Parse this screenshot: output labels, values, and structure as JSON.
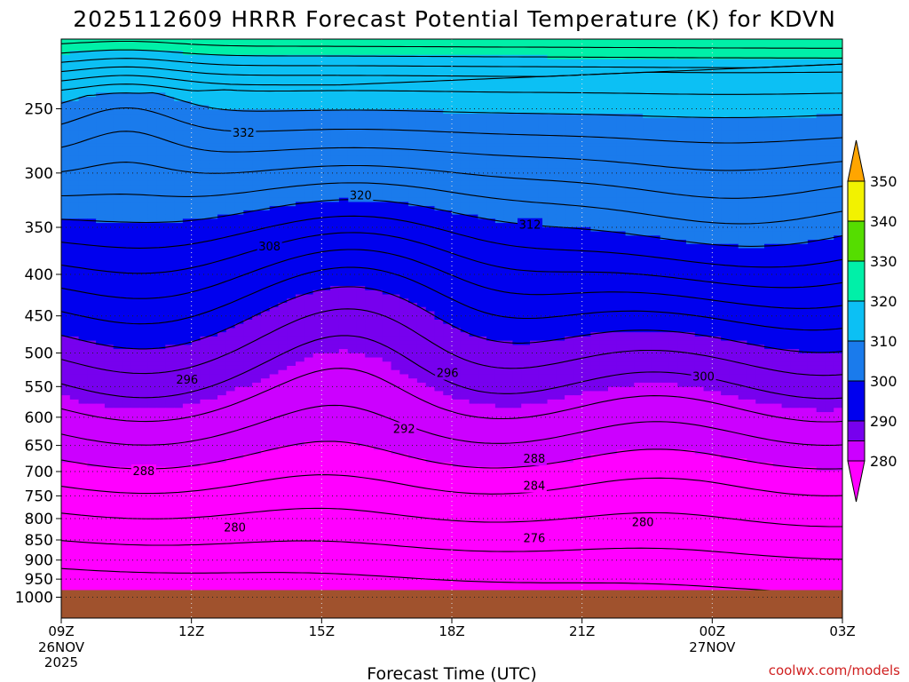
{
  "chart_data": {
    "type": "heatmap",
    "title": "2025112609 HRRR Forecast Potential Temperature (K) for KDVN",
    "xlabel": "Forecast Time (UTC)",
    "ylabel": "",
    "x_ticks": [
      "09Z",
      "12Z",
      "15Z",
      "18Z",
      "21Z",
      "00Z",
      "03Z"
    ],
    "x_tick_hours": [
      0,
      3,
      6,
      9,
      12,
      15,
      18
    ],
    "x_date_labels": [
      {
        "hour": 0,
        "lines": [
          "26NOV",
          "2025"
        ]
      },
      {
        "hour": 15,
        "lines": [
          "27NOV"
        ]
      }
    ],
    "y_ticks": [
      250,
      300,
      350,
      400,
      450,
      500,
      550,
      600,
      650,
      700,
      750,
      800,
      850,
      900,
      950,
      1000
    ],
    "y_range_hPa": [
      1000,
      200
    ],
    "y_scale": "log-pressure",
    "grid": "dotted",
    "colorbar": {
      "ticks": [
        280,
        290,
        300,
        310,
        320,
        330,
        340,
        350
      ],
      "bands": [
        {
          "lo": 270,
          "hi": 280,
          "color": "#ff00ff"
        },
        {
          "lo": 280,
          "hi": 285,
          "color": "#cc00ff"
        },
        {
          "lo": 285,
          "hi": 290,
          "color": "#7700ee"
        },
        {
          "lo": 290,
          "hi": 300,
          "color": "#0000ee"
        },
        {
          "lo": 300,
          "hi": 310,
          "color": "#1a7bec"
        },
        {
          "lo": 310,
          "hi": 320,
          "color": "#0cc0f4"
        },
        {
          "lo": 320,
          "hi": 330,
          "color": "#00f0a8"
        },
        {
          "lo": 330,
          "hi": 340,
          "color": "#55dd00"
        },
        {
          "lo": 340,
          "hi": 350,
          "color": "#f2f200"
        },
        {
          "lo": 350,
          "hi": 360,
          "color": "#ffa500"
        }
      ]
    },
    "contour_interval_K": 2,
    "contour_labels": [
      {
        "value": 332,
        "hour": 4.2,
        "p": 268
      },
      {
        "value": 320,
        "hour": 6.9,
        "p": 320
      },
      {
        "value": 312,
        "hour": 10.8,
        "p": 348
      },
      {
        "value": 308,
        "hour": 4.8,
        "p": 370
      },
      {
        "value": 296,
        "hour": 2.9,
        "p": 540
      },
      {
        "value": 296,
        "hour": 8.9,
        "p": 530
      },
      {
        "value": 300,
        "hour": 14.8,
        "p": 535
      },
      {
        "value": 292,
        "hour": 7.9,
        "p": 621
      },
      {
        "value": 288,
        "hour": 10.9,
        "p": 676
      },
      {
        "value": 288,
        "hour": 1.9,
        "p": 700
      },
      {
        "value": 284,
        "hour": 10.9,
        "p": 730
      },
      {
        "value": 280,
        "hour": 13.4,
        "p": 809
      },
      {
        "value": 280,
        "hour": 4.0,
        "p": 822
      },
      {
        "value": 276,
        "hour": 10.9,
        "p": 847
      }
    ]
  },
  "credit": "coolwx.com/models"
}
